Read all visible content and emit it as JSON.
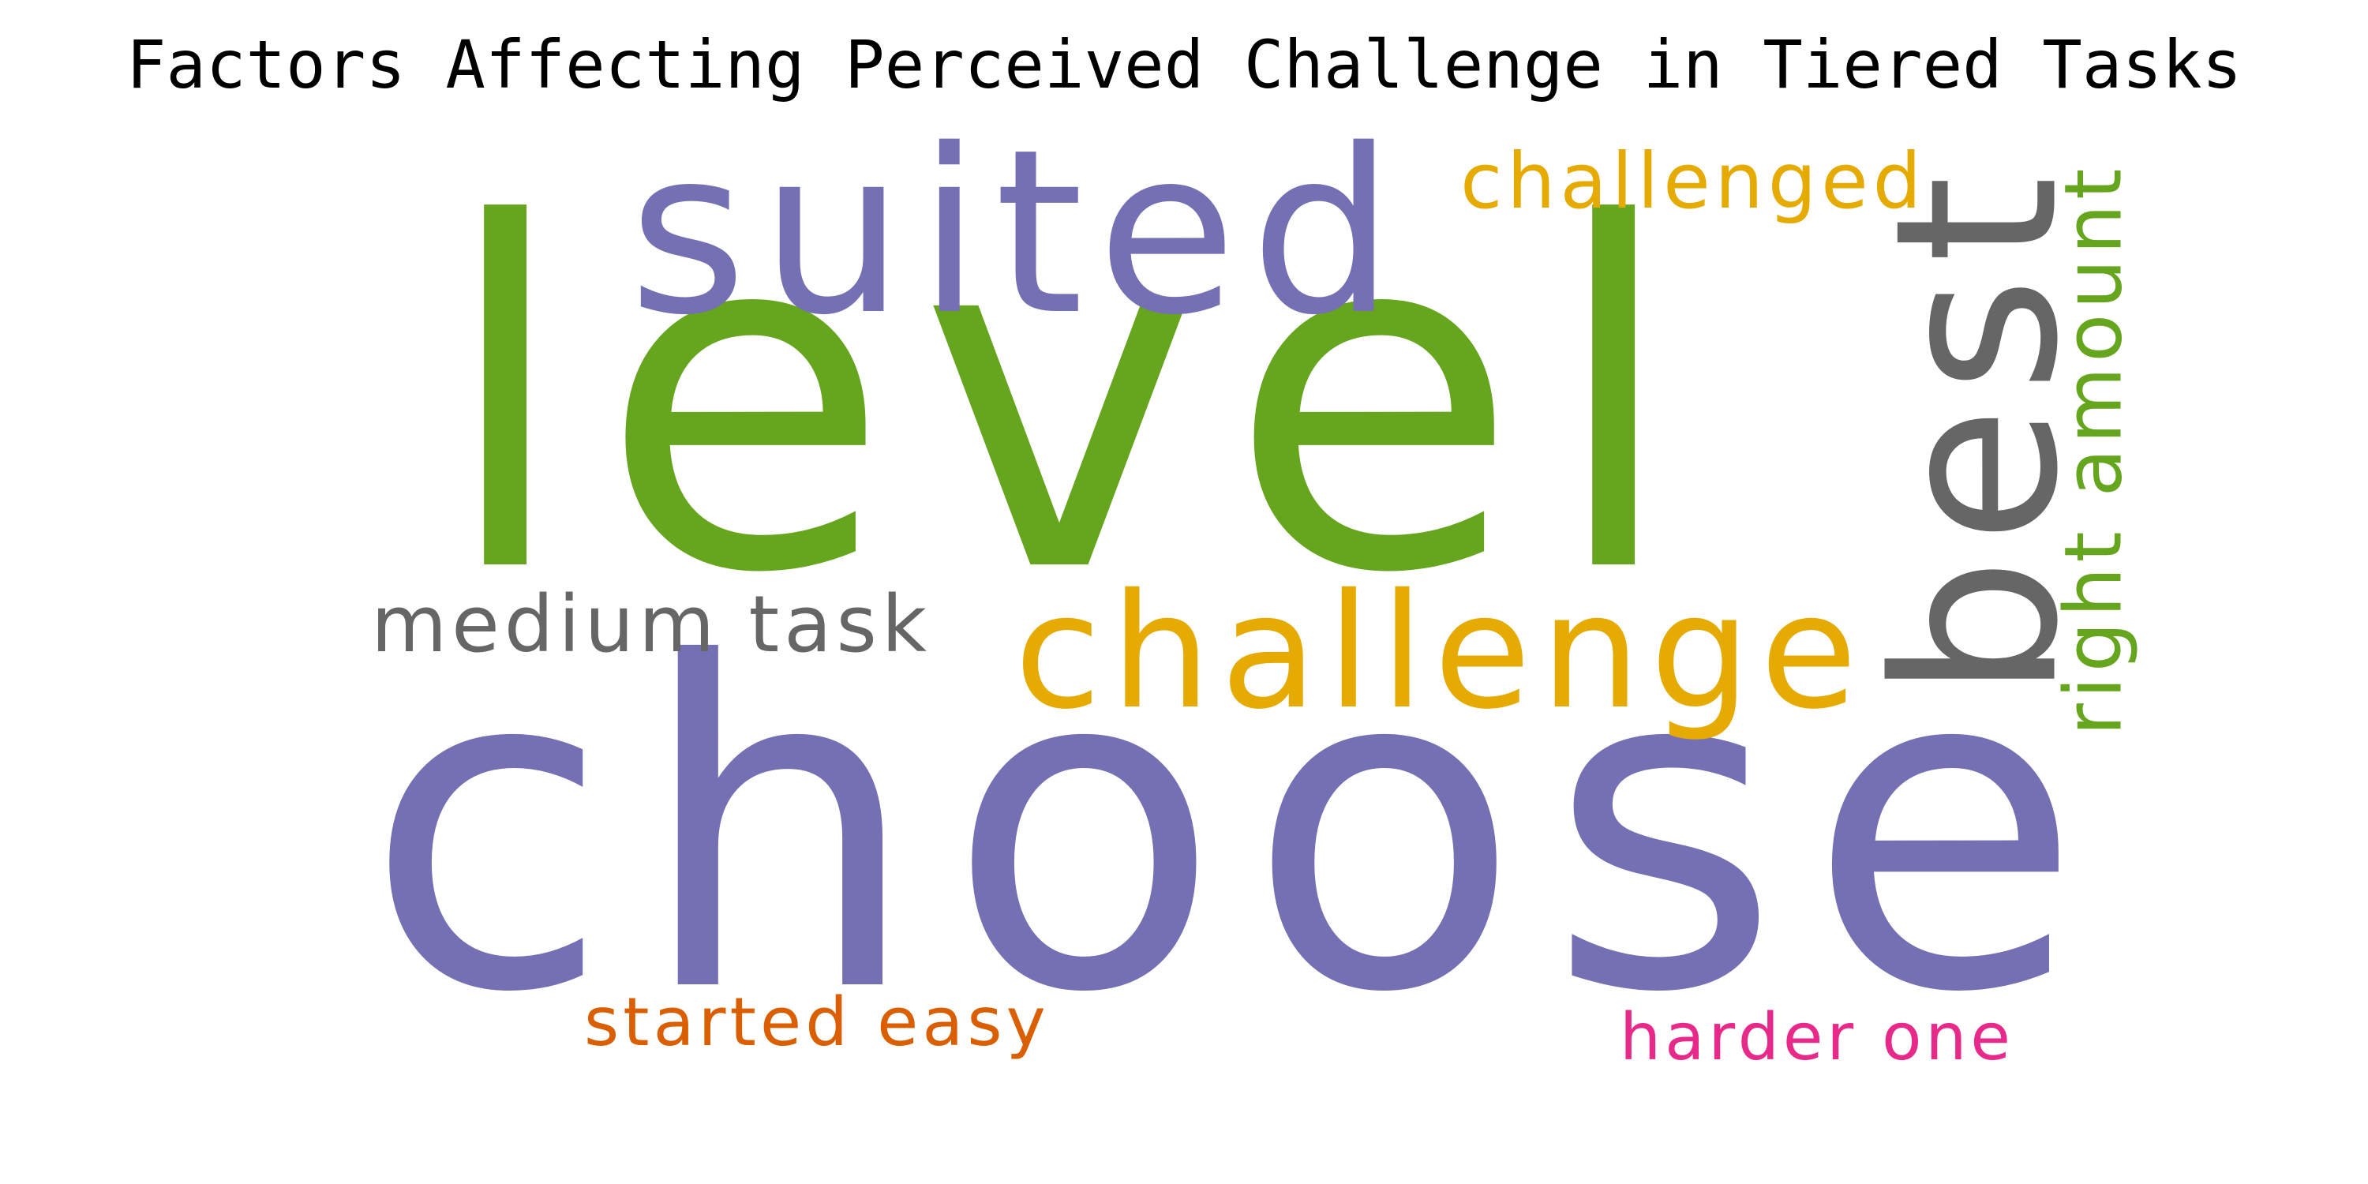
{
  "title": "Factors Affecting Perceived Challenge in Tiered Tasks",
  "words": [
    {
      "text": "choose",
      "color": "#7570b3"
    },
    {
      "text": "level",
      "color": "#66a61e"
    },
    {
      "text": "suited",
      "color": "#7570b3"
    },
    {
      "text": "challenge",
      "color": "#e6ab02"
    },
    {
      "text": "best",
      "color": "#666666",
      "orientation": "vertical"
    },
    {
      "text": "challenged",
      "color": "#e6ab02"
    },
    {
      "text": "right amount",
      "color": "#66a61e",
      "orientation": "vertical"
    },
    {
      "text": "medium task",
      "color": "#666666"
    },
    {
      "text": "started easy",
      "color": "#d95f02"
    },
    {
      "text": "harder one",
      "color": "#e7298a"
    }
  ]
}
